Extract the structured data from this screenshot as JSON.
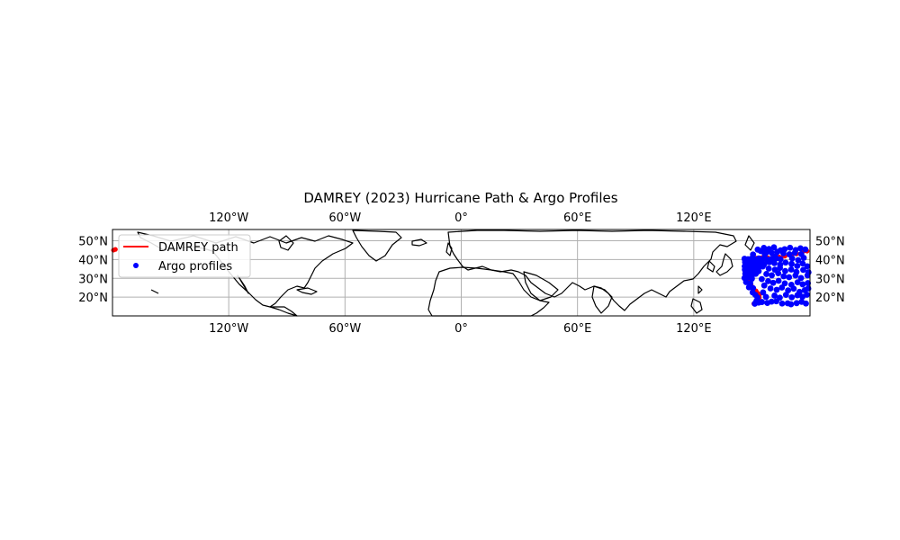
{
  "chart_data": {
    "type": "map",
    "title": "DAMREY (2023) Hurricane Path & Argo Profiles",
    "projection": "PlateCarree",
    "extent": {
      "lon": [
        -180,
        180
      ],
      "lat": [
        10,
        56
      ]
    },
    "grid": true,
    "lon_ticks": [
      {
        "value": -120,
        "label": "120°W"
      },
      {
        "value": -60,
        "label": "60°W"
      },
      {
        "value": 0,
        "label": "0°"
      },
      {
        "value": 60,
        "label": "60°E"
      },
      {
        "value": 120,
        "label": "120°E"
      }
    ],
    "lat_ticks": [
      {
        "value": 50,
        "label": "50°N"
      },
      {
        "value": 40,
        "label": "40°N"
      },
      {
        "value": 30,
        "label": "30°N"
      },
      {
        "value": 20,
        "label": "20°N"
      }
    ],
    "legend": {
      "placement": "upper-left",
      "entries": [
        {
          "label": "DAMREY path",
          "marker": "line",
          "color": "#ff0000"
        },
        {
          "label": "Argo profiles",
          "marker": "dot",
          "color": "#0000ff"
        }
      ]
    },
    "track": {
      "name": "DAMREY path",
      "color": "#ff0000",
      "points": [
        [
          151.0,
          16.5
        ],
        [
          152.2,
          17.2
        ],
        [
          153.2,
          18.2
        ],
        [
          153.8,
          19.5
        ],
        [
          153.8,
          20.8
        ],
        [
          153.2,
          22.0
        ],
        [
          152.2,
          23.3
        ],
        [
          151.0,
          24.6
        ],
        [
          149.8,
          26.0
        ],
        [
          148.8,
          27.5
        ],
        [
          148.0,
          29.0
        ],
        [
          147.3,
          30.5
        ],
        [
          146.8,
          32.0
        ],
        [
          146.6,
          33.5
        ],
        [
          146.8,
          35.0
        ],
        [
          147.3,
          36.5
        ],
        [
          148.0,
          38.0
        ],
        [
          149.0,
          39.2
        ],
        [
          150.5,
          40.2
        ],
        [
          152.5,
          40.8
        ],
        [
          155.0,
          41.0
        ],
        [
          158.0,
          41.1
        ],
        [
          161.0,
          41.2
        ],
        [
          164.0,
          41.4
        ],
        [
          167.0,
          41.8
        ],
        [
          170.0,
          42.3
        ],
        [
          173.0,
          43.0
        ],
        [
          176.0,
          43.8
        ],
        [
          178.5,
          44.5
        ],
        [
          -179.5,
          45.0
        ],
        [
          -178.5,
          45.4
        ]
      ]
    },
    "argo_profiles": {
      "color": "#0000ff",
      "points": [
        [
          146.2,
          40.4
        ],
        [
          148.0,
          40.2
        ],
        [
          149.8,
          40.5
        ],
        [
          151.8,
          40.1
        ],
        [
          153.6,
          40.6
        ],
        [
          155.7,
          40.3
        ],
        [
          157.9,
          40.0
        ],
        [
          160.2,
          40.4
        ],
        [
          162.5,
          40.6
        ],
        [
          164.8,
          40.2
        ],
        [
          146.5,
          38.6
        ],
        [
          147.9,
          38.0
        ],
        [
          149.3,
          37.6
        ],
        [
          150.8,
          38.3
        ],
        [
          152.6,
          37.9
        ],
        [
          154.2,
          38.1
        ],
        [
          156.3,
          37.4
        ],
        [
          146.3,
          36.4
        ],
        [
          147.8,
          36.0
        ],
        [
          149.5,
          35.6
        ],
        [
          151.2,
          36.2
        ],
        [
          153.4,
          35.9
        ],
        [
          155.6,
          36.3
        ],
        [
          146.4,
          34.6
        ],
        [
          148.0,
          34.2
        ],
        [
          149.8,
          33.7
        ],
        [
          151.6,
          34.4
        ],
        [
          153.5,
          33.8
        ],
        [
          146.6,
          32.5
        ],
        [
          148.4,
          32.1
        ],
        [
          150.2,
          31.8
        ],
        [
          152.0,
          32.4
        ],
        [
          146.2,
          30.2
        ],
        [
          148.1,
          30.6
        ],
        [
          150.0,
          29.8
        ],
        [
          147.0,
          28.0
        ],
        [
          149.2,
          27.3
        ],
        [
          148.5,
          25.2
        ],
        [
          150.6,
          24.8
        ],
        [
          150.4,
          22.5
        ],
        [
          151.8,
          21.2
        ],
        [
          152.9,
          19.8
        ],
        [
          152.4,
          18.0
        ],
        [
          153.5,
          17.1
        ],
        [
          151.5,
          16.5
        ],
        [
          155.2,
          17.4
        ],
        [
          158.0,
          16.9
        ],
        [
          160.2,
          17.6
        ],
        [
          168.5,
          16.7
        ],
        [
          170.2,
          16.2
        ],
        [
          156.2,
          46.2
        ],
        [
          158.8,
          45.6
        ],
        [
          161.4,
          46.5
        ],
        [
          164.8,
          44.9
        ],
        [
          166.9,
          45.5
        ],
        [
          169.7,
          46.3
        ],
        [
          172.6,
          45.1
        ],
        [
          175.1,
          46.0
        ],
        [
          177.6,
          45.4
        ],
        [
          154.6,
          44.5
        ],
        [
          157.5,
          43.9
        ],
        [
          160.2,
          43.6
        ],
        [
          163.1,
          44.1
        ],
        [
          166.3,
          43.3
        ],
        [
          169.4,
          42.8
        ],
        [
          172.2,
          43.6
        ],
        [
          175.5,
          42.9
        ],
        [
          159.0,
          38.6
        ],
        [
          161.6,
          38.1
        ],
        [
          164.6,
          37.3
        ],
        [
          167.4,
          38.4
        ],
        [
          170.5,
          37.7
        ],
        [
          173.4,
          36.6
        ],
        [
          176.2,
          37.9
        ],
        [
          178.6,
          36.4
        ],
        [
          158.7,
          35.2
        ],
        [
          161.9,
          34.6
        ],
        [
          164.5,
          35.6
        ],
        [
          167.2,
          33.9
        ],
        [
          170.3,
          34.7
        ],
        [
          173.0,
          33.4
        ],
        [
          176.5,
          34.5
        ],
        [
          179.2,
          33.2
        ],
        [
          157.5,
          32.3
        ],
        [
          160.3,
          31.6
        ],
        [
          163.6,
          32.7
        ],
        [
          166.4,
          31.1
        ],
        [
          169.2,
          30.6
        ],
        [
          172.5,
          31.5
        ],
        [
          175.4,
          30.2
        ],
        [
          178.7,
          31.6
        ],
        [
          158.4,
          28.5
        ],
        [
          161.0,
          27.6
        ],
        [
          163.8,
          28.7
        ],
        [
          167.0,
          27.3
        ],
        [
          170.4,
          26.6
        ],
        [
          173.6,
          27.9
        ],
        [
          176.2,
          26.8
        ],
        [
          178.9,
          27.5
        ],
        [
          159.6,
          24.6
        ],
        [
          162.8,
          23.9
        ],
        [
          165.5,
          25.1
        ],
        [
          168.7,
          23.6
        ],
        [
          171.6,
          24.5
        ],
        [
          174.6,
          22.8
        ],
        [
          177.3,
          23.7
        ],
        [
          179.1,
          24.6
        ],
        [
          161.7,
          20.8
        ],
        [
          164.4,
          19.7
        ],
        [
          167.6,
          21.2
        ],
        [
          170.6,
          19.9
        ],
        [
          173.5,
          21.0
        ],
        [
          176.1,
          20.2
        ],
        [
          178.4,
          21.3
        ],
        [
          162.6,
          17.8
        ],
        [
          165.6,
          16.6
        ],
        [
          173.1,
          16.8
        ],
        [
          175.7,
          17.5
        ],
        [
          177.9,
          16.6
        ],
        [
          155.1,
          29.6
        ],
        [
          156.4,
          26.2
        ],
        [
          155.8,
          22.5
        ],
        [
          157.3,
          20.1
        ],
        [
          162.1,
          41.6
        ],
        [
          156.7,
          42.8
        ],
        [
          153.0,
          45.3
        ],
        [
          150.6,
          42.7
        ],
        [
          170.8,
          40.6
        ],
        [
          173.9,
          39.7
        ],
        [
          176.8,
          40.9
        ]
      ]
    }
  }
}
